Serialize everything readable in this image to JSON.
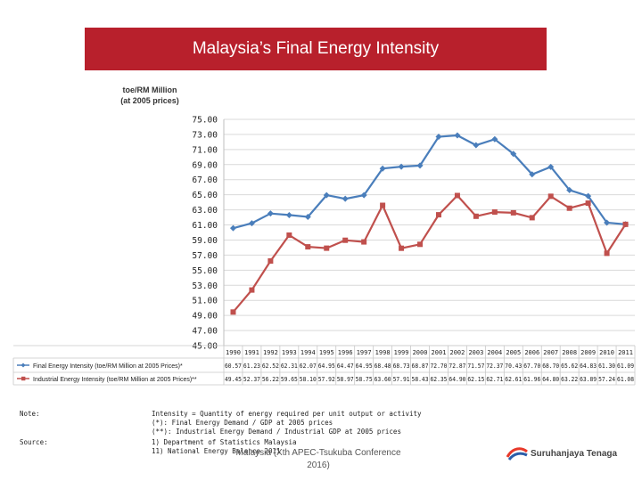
{
  "title": "Malaysia’s Final Energy Intensity",
  "y_unit_line1": "toe/RM Million",
  "y_unit_line2": "(at 2005 prices)",
  "chart_data": {
    "type": "line",
    "title": "Malaysia’s Final Energy Intensity",
    "ylabel": "toe/RM Million (at 2005 prices)",
    "ylim": [
      45,
      75
    ],
    "ytick_step": 2,
    "yticks": [
      "75.00",
      "73.00",
      "71.00",
      "69.00",
      "67.00",
      "65.00",
      "63.00",
      "61.00",
      "59.00",
      "57.00",
      "55.00",
      "53.00",
      "51.00",
      "49.00",
      "47.00",
      "45.00"
    ],
    "categories": [
      "1990",
      "1991",
      "1992",
      "1993",
      "1994",
      "1995",
      "1996",
      "1997",
      "1998",
      "1999",
      "2000",
      "2001",
      "2002",
      "2003",
      "2004",
      "2005",
      "2006",
      "2007",
      "2008",
      "2009",
      "2010",
      "2011"
    ],
    "grid": true,
    "legend": "data-table-bottom",
    "series": [
      {
        "name": "Final Energy Intensity (toe/RM Million at 2005 Prices)*",
        "color": "#4a7ebb",
        "marker": "diamond",
        "values": [
          60.57,
          61.23,
          62.52,
          62.31,
          62.07,
          64.95,
          64.47,
          64.95,
          68.48,
          68.73,
          68.87,
          72.7,
          72.87,
          71.57,
          72.37,
          70.43,
          67.7,
          68.7,
          65.62,
          64.83,
          61.3,
          61.09
        ],
        "labels": [
          "60.57",
          "61.23",
          "62.52",
          "62.31",
          "62.07",
          "64.95",
          "64.47",
          "64.95",
          "68.48",
          "68.73",
          "68.87",
          "72.70",
          "72.87",
          "71.57",
          "72.37",
          "70.43",
          "67.70",
          "68.70",
          "65.62",
          "64.83",
          "61.30",
          "61.09"
        ]
      },
      {
        "name": "Industrial Energy Intensity (toe/RM Million at 2005 Prices)**",
        "color": "#c0504d",
        "marker": "square",
        "values": [
          49.45,
          52.37,
          56.22,
          59.65,
          58.1,
          57.92,
          58.97,
          58.75,
          63.6,
          57.91,
          58.43,
          62.35,
          64.9,
          62.15,
          62.71,
          62.61,
          61.96,
          64.8,
          63.22,
          63.89,
          57.24,
          61.08
        ],
        "labels": [
          "49.45",
          "52.37",
          "56.22",
          "59.65",
          "58.10",
          "57.92",
          "58.97",
          "58.75",
          "63.60",
          "57.91",
          "58.43",
          "62.35",
          "64.90",
          "62.15",
          "62.71",
          "62.61",
          "61.96",
          "64.80",
          "63.22",
          "63.89",
          "57.24",
          "61.08"
        ]
      }
    ]
  },
  "notes": {
    "note_label": "Note:",
    "note_lines": [
      "Intensity = Quantity of energy required per unit output or activity",
      "(*): Final Energy Demand / GDP at 2005 prices",
      "(**): Industrial Energy Demand / Industrial GDP at 2005 prices"
    ],
    "source_label": "Source:",
    "source_lines": [
      "1) Department of Statistics Malaysia",
      "11) National Energy Balance 2011"
    ]
  },
  "footer": "Malaysia (Xth APEC-Tsukuba Conference 2016)",
  "logo_text": "Suruhanjaya Tenaga",
  "logo_colors": [
    "#e8392a",
    "#2b5da8"
  ]
}
